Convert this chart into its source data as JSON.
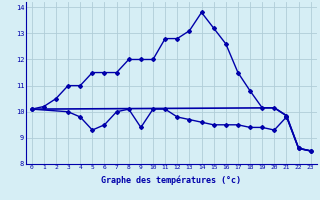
{
  "title": "",
  "xlabel": "Graphe des températures (°c)",
  "ylabel": "",
  "bg_color": "#d6eef5",
  "grid_color": "#b0cdd8",
  "line_color": "#0000aa",
  "xlim": [
    -0.5,
    23.5
  ],
  "ylim": [
    8.0,
    14.2
  ],
  "yticks": [
    8,
    9,
    10,
    11,
    12,
    13,
    14
  ],
  "xticks": [
    0,
    1,
    2,
    3,
    4,
    5,
    6,
    7,
    8,
    9,
    10,
    11,
    12,
    13,
    14,
    15,
    16,
    17,
    18,
    19,
    20,
    21,
    22,
    23
  ],
  "curve1_x": [
    0,
    1,
    2,
    3,
    4,
    5,
    6,
    7,
    8,
    9,
    10,
    11,
    12,
    13,
    14,
    15,
    16,
    17,
    18,
    19,
    20,
    21,
    22,
    23
  ],
  "curve1_y": [
    10.1,
    10.2,
    10.5,
    11.0,
    11.0,
    11.5,
    11.5,
    11.5,
    12.0,
    12.0,
    12.0,
    12.8,
    12.8,
    13.1,
    13.8,
    13.2,
    12.6,
    11.5,
    10.8,
    10.15,
    10.15,
    9.85,
    8.6,
    8.5
  ],
  "curve2_x": [
    0,
    3,
    4,
    5,
    6,
    7,
    8,
    9,
    10,
    11,
    12,
    13,
    14,
    15,
    16,
    17,
    18,
    19,
    20,
    21,
    22,
    23
  ],
  "curve2_y": [
    10.1,
    10.0,
    9.8,
    9.3,
    9.5,
    10.0,
    10.1,
    9.4,
    10.1,
    10.1,
    9.8,
    9.7,
    9.6,
    9.5,
    9.5,
    9.5,
    9.4,
    9.4,
    9.3,
    9.8,
    8.6,
    8.5
  ],
  "curve3_x": [
    0,
    20,
    21,
    22,
    23
  ],
  "curve3_y": [
    10.1,
    10.15,
    9.85,
    8.6,
    8.5
  ]
}
